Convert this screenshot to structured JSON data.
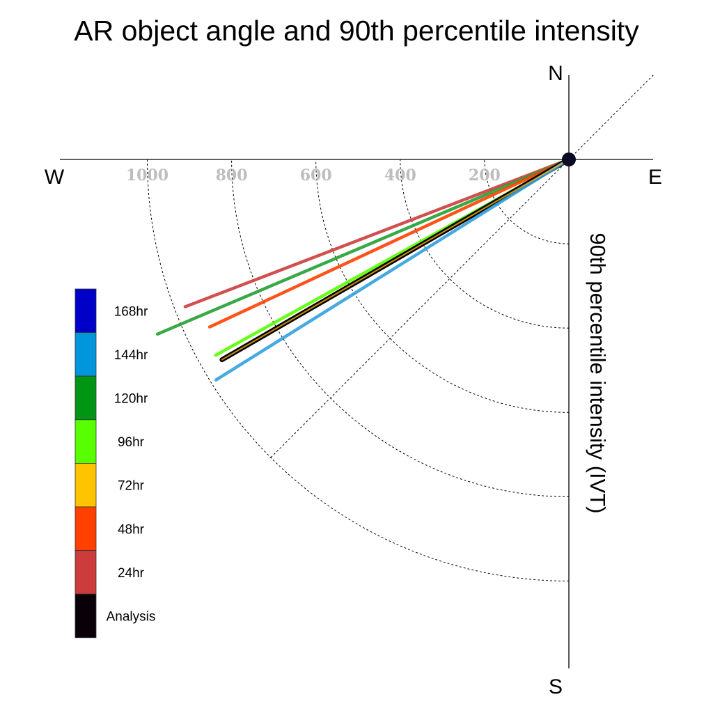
{
  "chart_data": {
    "type": "polar-vector",
    "title": "AR object angle and 90th percentile intensity",
    "radial_label": "90th percentile intensity (IVT)",
    "compass": {
      "north": "N",
      "south": "S",
      "east": "E",
      "west": "W"
    },
    "radial_ticks": [
      200,
      400,
      600,
      800,
      1000
    ],
    "radial_tick_labels": [
      "200",
      "400",
      "600",
      "800",
      "1000"
    ],
    "angle_convention": "degrees clockwise from north",
    "legend": {
      "entries": [
        {
          "label": "168hr",
          "color": "#0000c8"
        },
        {
          "label": "144hr",
          "color": "#0096dc"
        },
        {
          "label": "120hr",
          "color": "#009614"
        },
        {
          "label": "96hr",
          "color": "#58ff00"
        },
        {
          "label": "72hr",
          "color": "#ffc400"
        },
        {
          "label": "48hr",
          "color": "#ff4000"
        },
        {
          "label": "24hr",
          "color": "#cc3c3c"
        },
        {
          "label": "Analysis",
          "color": "#0a0008"
        }
      ]
    },
    "series": [
      {
        "name": "24hr",
        "angle_deg": 249,
        "intensity": 975,
        "color": "#cc3c3c"
      },
      {
        "name": "120hr",
        "angle_deg": 247,
        "intensity": 1060,
        "color": "#22a032"
      },
      {
        "name": "48hr",
        "angle_deg": 245,
        "intensity": 940,
        "color": "#ff4000"
      },
      {
        "name": "96hr",
        "angle_deg": 241,
        "intensity": 958,
        "color": "#58ff00"
      },
      {
        "name": "72hr",
        "angle_deg": 240,
        "intensity": 950,
        "color": "#ffc400"
      },
      {
        "name": "Analysis",
        "angle_deg": 240,
        "intensity": 950,
        "color": "#0a0008"
      },
      {
        "name": "144hr",
        "angle_deg": 238,
        "intensity": 987,
        "color": "#32a0dc"
      }
    ]
  }
}
